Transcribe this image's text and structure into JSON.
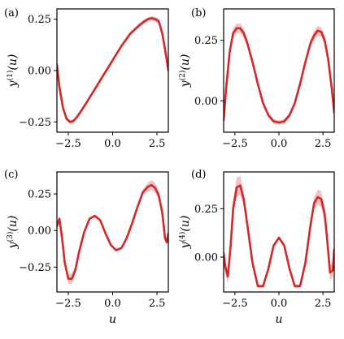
{
  "figure": {
    "colors": {
      "line": "#d62728",
      "band": "#f2b8b8",
      "axis": "#000000"
    }
  },
  "chart_data": [
    {
      "type": "line",
      "panel_label": "(a)",
      "xlabel": "",
      "ylabel": "y(1)(u)",
      "ylabel_base": "y",
      "ylabel_sup": "(1)",
      "ylabel_arg": "(u)",
      "xlim": [
        -3.14,
        3.14
      ],
      "ylim": [
        -0.3,
        0.3
      ],
      "xticks": [
        -2.5,
        0.0,
        2.5
      ],
      "xtick_labels": [
        "−2.5",
        "0.0",
        "2.5"
      ],
      "yticks": [
        -0.25,
        0.0,
        0.25
      ],
      "ytick_labels": [
        "−0.25",
        "0.00",
        "0.25"
      ],
      "series": [
        {
          "x": [
            -3.14,
            -3.0,
            -2.8,
            -2.6,
            -2.4,
            -2.2,
            -2.0,
            -1.8,
            -1.5,
            -1.0,
            -0.5,
            0.0,
            0.5,
            1.0,
            1.5,
            1.8,
            2.0,
            2.2,
            2.4,
            2.6,
            2.8,
            3.0,
            3.14
          ],
          "y": [
            0.03,
            -0.08,
            -0.18,
            -0.235,
            -0.25,
            -0.245,
            -0.225,
            -0.2,
            -0.16,
            -0.09,
            -0.02,
            0.05,
            0.12,
            0.18,
            0.22,
            0.24,
            0.25,
            0.255,
            0.25,
            0.24,
            0.18,
            0.08,
            0.0
          ],
          "band": [
            0.02,
            0.015,
            0.012,
            0.01,
            0.01,
            0.01,
            0.01,
            0.01,
            0.01,
            0.01,
            0.01,
            0.01,
            0.01,
            0.01,
            0.01,
            0.01,
            0.01,
            0.01,
            0.012,
            0.015,
            0.02,
            0.025,
            0.03
          ]
        }
      ]
    },
    {
      "type": "line",
      "panel_label": "(b)",
      "xlabel": "",
      "ylabel": "y(2)(u)",
      "ylabel_base": "y",
      "ylabel_sup": "(2)",
      "ylabel_arg": "(u)",
      "xlim": [
        -3.14,
        3.14
      ],
      "ylim": [
        -0.13,
        0.38
      ],
      "xticks": [
        -2.5,
        0.0,
        2.5
      ],
      "xtick_labels": [
        "−2.5",
        "0.0",
        "2.5"
      ],
      "yticks": [
        0.0,
        0.25
      ],
      "ytick_labels": [
        "0.00",
        "0.25"
      ],
      "series": [
        {
          "x": [
            -3.14,
            -3.0,
            -2.8,
            -2.6,
            -2.4,
            -2.2,
            -2.0,
            -1.8,
            -1.5,
            -1.2,
            -0.9,
            -0.6,
            -0.3,
            0.0,
            0.3,
            0.6,
            0.9,
            1.2,
            1.5,
            1.8,
            2.0,
            2.2,
            2.4,
            2.6,
            2.8,
            3.0,
            3.14
          ],
          "y": [
            -0.08,
            0.05,
            0.2,
            0.28,
            0.3,
            0.3,
            0.28,
            0.24,
            0.16,
            0.07,
            -0.01,
            -0.06,
            -0.085,
            -0.09,
            -0.085,
            -0.06,
            -0.01,
            0.07,
            0.16,
            0.24,
            0.27,
            0.29,
            0.285,
            0.25,
            0.17,
            0.05,
            -0.05
          ],
          "band": [
            0.03,
            0.025,
            0.02,
            0.02,
            0.02,
            0.02,
            0.02,
            0.015,
            0.012,
            0.01,
            0.01,
            0.01,
            0.01,
            0.01,
            0.01,
            0.01,
            0.01,
            0.01,
            0.012,
            0.015,
            0.02,
            0.02,
            0.02,
            0.02,
            0.02,
            0.025,
            0.03
          ]
        }
      ]
    },
    {
      "type": "line",
      "panel_label": "(c)",
      "xlabel": "u",
      "ylabel": "y(3)(u)",
      "ylabel_base": "y",
      "ylabel_sup": "(3)",
      "ylabel_arg": "(u)",
      "xlim": [
        -3.14,
        3.14
      ],
      "ylim": [
        -0.42,
        0.4
      ],
      "xticks": [
        -2.5,
        0.0,
        2.5
      ],
      "xtick_labels": [
        "−2.5",
        "0.0",
        "2.5"
      ],
      "yticks": [
        -0.25,
        0.0,
        0.25
      ],
      "ytick_labels": [
        "−0.25",
        "0.00",
        "0.25"
      ],
      "series": [
        {
          "x": [
            -3.14,
            -3.0,
            -2.85,
            -2.7,
            -2.5,
            -2.3,
            -2.1,
            -1.9,
            -1.6,
            -1.3,
            -1.0,
            -0.7,
            -0.4,
            -0.1,
            0.2,
            0.5,
            0.8,
            1.1,
            1.4,
            1.7,
            2.0,
            2.2,
            2.4,
            2.6,
            2.8,
            2.95,
            3.05,
            3.14
          ],
          "y": [
            0.03,
            0.08,
            -0.05,
            -0.22,
            -0.33,
            -0.33,
            -0.27,
            -0.15,
            -0.01,
            0.08,
            0.1,
            0.07,
            -0.02,
            -0.1,
            -0.135,
            -0.12,
            -0.05,
            0.05,
            0.16,
            0.26,
            0.3,
            0.31,
            0.29,
            0.24,
            0.12,
            -0.05,
            -0.08,
            -0.02
          ],
          "band": [
            0.02,
            0.02,
            0.025,
            0.03,
            0.035,
            0.035,
            0.025,
            0.015,
            0.012,
            0.01,
            0.01,
            0.01,
            0.01,
            0.01,
            0.01,
            0.01,
            0.01,
            0.012,
            0.015,
            0.02,
            0.03,
            0.035,
            0.035,
            0.03,
            0.025,
            0.02,
            0.02,
            0.02
          ]
        }
      ]
    },
    {
      "type": "line",
      "panel_label": "(d)",
      "xlabel": "u",
      "ylabel": "y(4)(u)",
      "ylabel_base": "y",
      "ylabel_sup": "(4)",
      "ylabel_arg": "(u)",
      "xlim": [
        -3.14,
        3.14
      ],
      "ylim": [
        -0.18,
        0.44
      ],
      "xticks": [
        -2.5,
        0.0,
        2.5
      ],
      "xtick_labels": [
        "−2.5",
        "0.0",
        "2.5"
      ],
      "yticks": [
        0.0,
        0.25
      ],
      "ytick_labels": [
        "0.00",
        "0.25"
      ],
      "series": [
        {
          "x": [
            -3.14,
            -3.05,
            -2.9,
            -2.75,
            -2.6,
            -2.4,
            -2.2,
            -2.0,
            -1.8,
            -1.5,
            -1.2,
            -0.9,
            -0.6,
            -0.3,
            0.0,
            0.3,
            0.6,
            0.9,
            1.2,
            1.5,
            1.8,
            2.0,
            2.2,
            2.4,
            2.6,
            2.75,
            2.9,
            3.05,
            3.14
          ],
          "y": [
            0.02,
            -0.05,
            -0.1,
            0.05,
            0.25,
            0.36,
            0.37,
            0.3,
            0.17,
            -0.03,
            -0.15,
            -0.15,
            -0.06,
            0.06,
            0.1,
            0.06,
            -0.06,
            -0.15,
            -0.15,
            -0.03,
            0.17,
            0.28,
            0.31,
            0.3,
            0.22,
            0.08,
            -0.08,
            -0.07,
            0.04
          ],
          "band": [
            0.03,
            0.03,
            0.04,
            0.04,
            0.045,
            0.05,
            0.05,
            0.035,
            0.02,
            0.012,
            0.01,
            0.01,
            0.01,
            0.01,
            0.01,
            0.01,
            0.01,
            0.01,
            0.01,
            0.012,
            0.02,
            0.03,
            0.04,
            0.04,
            0.04,
            0.04,
            0.04,
            0.035,
            0.03
          ]
        }
      ]
    }
  ]
}
